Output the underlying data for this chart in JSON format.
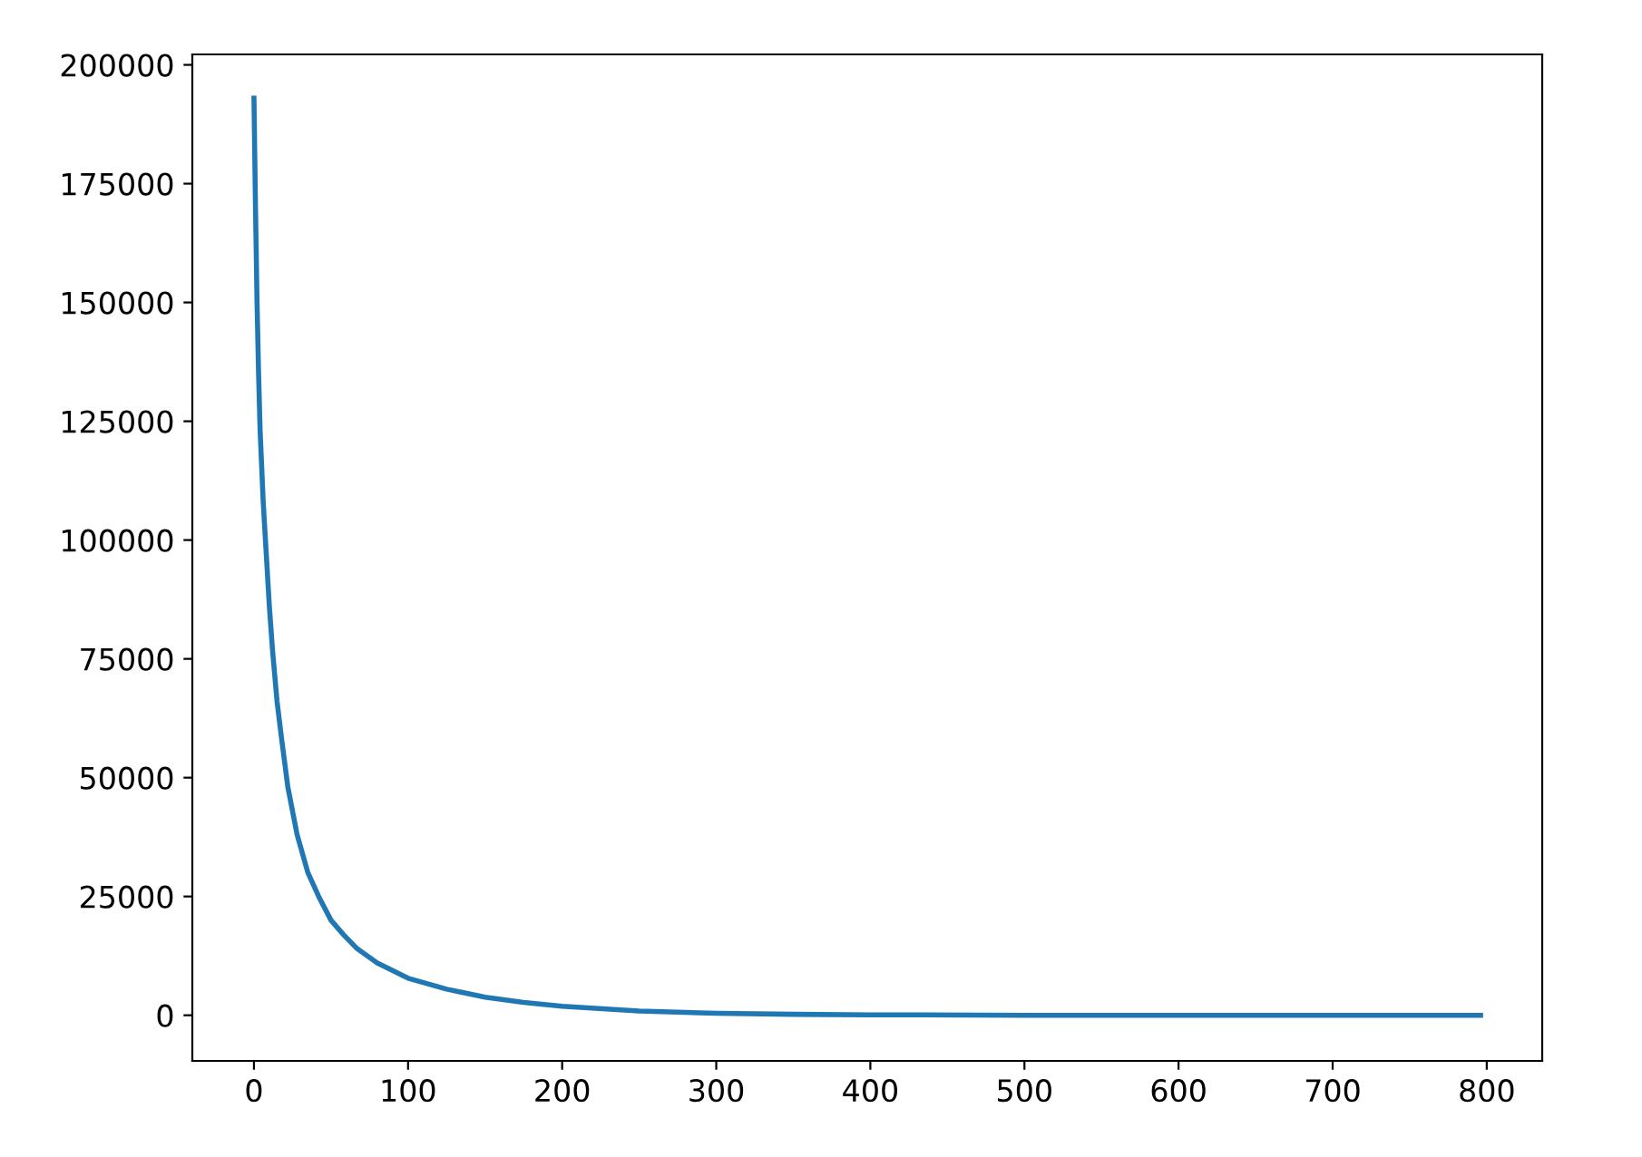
{
  "chart_data": {
    "type": "line",
    "x": [
      0,
      1,
      2,
      3,
      4,
      6,
      8,
      10,
      12,
      15,
      18,
      22,
      28,
      35,
      42,
      50,
      58,
      67,
      80,
      100,
      125,
      150,
      175,
      200,
      250,
      300,
      350,
      400,
      500,
      600,
      700,
      796
    ],
    "series": [
      {
        "color": "#1f77b4",
        "values": [
          193000,
          170000,
          150000,
          135000,
          123000,
          108000,
          97000,
          86000,
          77000,
          66000,
          58000,
          48000,
          38000,
          30000,
          25000,
          20000,
          17000,
          14000,
          11000,
          7800,
          5500,
          3800,
          2700,
          1900,
          900,
          400,
          200,
          100,
          0,
          0,
          0,
          0
        ]
      }
    ],
    "xlim": [
      -40,
      836
    ],
    "xticks": [
      0,
      100,
      200,
      300,
      400,
      500,
      600,
      700,
      800
    ],
    "ylim": [
      -9600,
      202200
    ],
    "yticks": [
      0,
      25000,
      50000,
      75000,
      100000,
      125000,
      150000,
      175000,
      200000
    ],
    "grid": false,
    "legend": false,
    "marker": "none",
    "line_style": "solid"
  }
}
